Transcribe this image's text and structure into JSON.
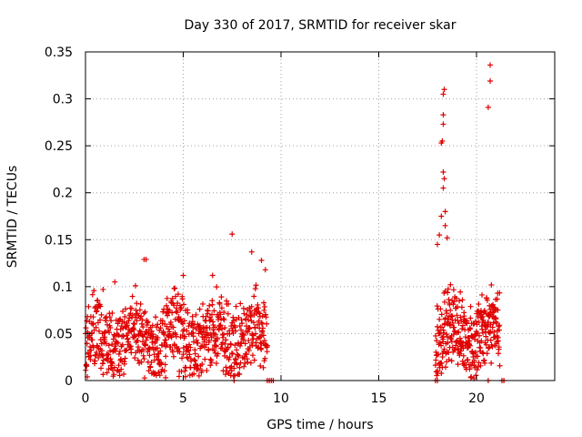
{
  "chart_data": {
    "type": "scatter",
    "title": "Day 330 of 2017, SRMTID for receiver skar",
    "xlabel": "GPS time / hours",
    "ylabel": "SRMTID / TECUs",
    "xlim": [
      0,
      24
    ],
    "ylim": [
      0,
      0.35
    ],
    "xticks": [
      0,
      5,
      10,
      15,
      20
    ],
    "xtick_labels": [
      "0",
      "5",
      "10",
      "15",
      "20"
    ],
    "yticks": [
      0,
      0.05,
      0.1,
      0.15,
      0.2,
      0.25,
      0.3,
      0.35
    ],
    "ytick_labels": [
      "0",
      "0.05",
      "0.1",
      "0.15",
      "0.2",
      "0.25",
      "0.3",
      "0.35"
    ],
    "grid": true,
    "marker": "+",
    "color": "#e00000",
    "series": [
      {
        "name": "SRMTID",
        "segments": [
          {
            "start": 0.0,
            "end": 9.3,
            "step": 0.012,
            "base": 0.045,
            "spread": 0.05
          },
          {
            "start": 17.9,
            "end": 21.2,
            "step": 0.01,
            "base": 0.05,
            "spread": 0.05
          }
        ],
        "points": [
          {
            "x": 0.1,
            "y": 0.068
          },
          {
            "x": 0.2,
            "y": 0.063
          },
          {
            "x": 0.9,
            "y": 0.097
          },
          {
            "x": 1.5,
            "y": 0.105
          },
          {
            "x": 3.1,
            "y": 0.129
          },
          {
            "x": 3.0,
            "y": 0.129
          },
          {
            "x": 5.0,
            "y": 0.112
          },
          {
            "x": 6.5,
            "y": 0.112
          },
          {
            "x": 7.5,
            "y": 0.156
          },
          {
            "x": 8.5,
            "y": 0.137
          },
          {
            "x": 9.0,
            "y": 0.128
          },
          {
            "x": 9.2,
            "y": 0.118
          },
          {
            "x": 18.0,
            "y": 0.145
          },
          {
            "x": 18.2,
            "y": 0.175
          },
          {
            "x": 18.3,
            "y": 0.205
          },
          {
            "x": 18.3,
            "y": 0.222
          },
          {
            "x": 18.35,
            "y": 0.215
          },
          {
            "x": 18.2,
            "y": 0.253
          },
          {
            "x": 18.25,
            "y": 0.255
          },
          {
            "x": 18.3,
            "y": 0.273
          },
          {
            "x": 18.3,
            "y": 0.283
          },
          {
            "x": 18.3,
            "y": 0.305
          },
          {
            "x": 18.35,
            "y": 0.31
          },
          {
            "x": 18.4,
            "y": 0.18
          },
          {
            "x": 18.4,
            "y": 0.165
          },
          {
            "x": 18.1,
            "y": 0.155
          },
          {
            "x": 18.5,
            "y": 0.152
          },
          {
            "x": 20.7,
            "y": 0.336
          },
          {
            "x": 20.7,
            "y": 0.319
          },
          {
            "x": 20.6,
            "y": 0.291
          },
          {
            "x": 20.6,
            "y": 0.0
          },
          {
            "x": 21.3,
            "y": 0.0
          },
          {
            "x": 21.4,
            "y": 0.0
          },
          {
            "x": 17.9,
            "y": 0.0
          },
          {
            "x": 18.0,
            "y": 0.0
          },
          {
            "x": 9.3,
            "y": 0.0
          },
          {
            "x": 9.4,
            "y": 0.0
          },
          {
            "x": 9.5,
            "y": 0.0
          },
          {
            "x": 9.6,
            "y": 0.0
          },
          {
            "x": 7.6,
            "y": 0.0
          },
          {
            "x": 4.1,
            "y": 0.003
          }
        ]
      }
    ]
  }
}
